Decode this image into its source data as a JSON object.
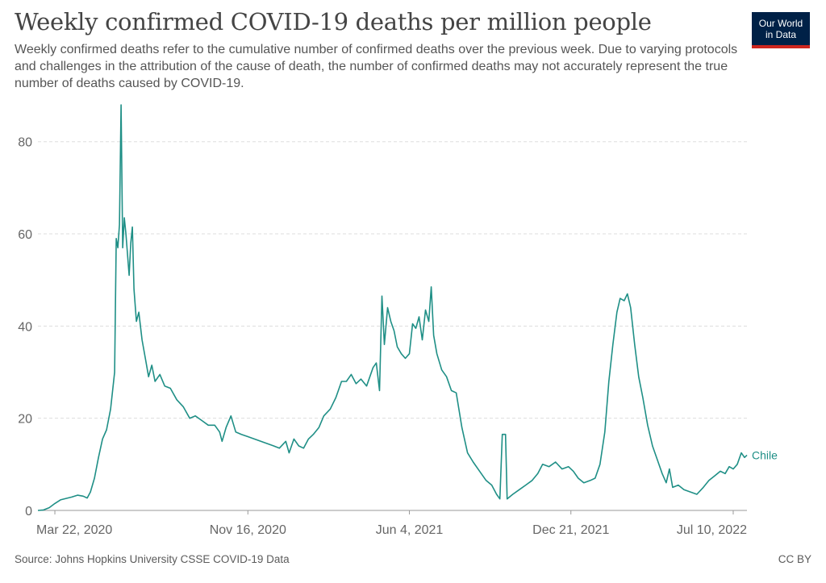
{
  "header": {
    "title": "Weekly confirmed COVID-19 deaths per million people",
    "subtitle": "Weekly confirmed deaths refer to the cumulative number of confirmed deaths over the previous week. Due to varying protocols and challenges in the attribution of the cause of death, the number of confirmed deaths may not accurately represent the true number of deaths caused by COVID-19."
  },
  "logo": {
    "line1": "Our World",
    "line2": "in Data"
  },
  "footer": {
    "source": "Source: Johns Hopkins University CSSE COVID-19 Data",
    "license": "CC BY"
  },
  "colors": {
    "series": "#1f8f86",
    "grid": "#dddddd",
    "axis": "#999999"
  },
  "chart_data": {
    "type": "line",
    "title": "Weekly confirmed COVID-19 deaths per million people",
    "xlabel": "",
    "ylabel": "",
    "x_range": [
      "2020-03-01",
      "2022-07-27"
    ],
    "ylim": [
      0,
      88
    ],
    "y_ticks": [
      0,
      20,
      40,
      60,
      80
    ],
    "x_ticks": [
      {
        "date": "2020-03-22",
        "label": "Mar 22, 2020"
      },
      {
        "date": "2020-11-16",
        "label": "Nov 16, 2020"
      },
      {
        "date": "2021-06-04",
        "label": "Jun 4, 2021"
      },
      {
        "date": "2021-12-21",
        "label": "Dec 21, 2021"
      },
      {
        "date": "2022-07-10",
        "label": "Jul 10, 2022"
      }
    ],
    "grid": true,
    "series": [
      {
        "name": "Chile",
        "points": [
          [
            "2020-03-01",
            0.0
          ],
          [
            "2020-03-08",
            0.1
          ],
          [
            "2020-03-15",
            0.6
          ],
          [
            "2020-03-22",
            1.5
          ],
          [
            "2020-03-29",
            2.3
          ],
          [
            "2020-04-05",
            2.6
          ],
          [
            "2020-04-12",
            2.9
          ],
          [
            "2020-04-19",
            3.3
          ],
          [
            "2020-04-26",
            3.1
          ],
          [
            "2020-05-01",
            2.7
          ],
          [
            "2020-05-05",
            4.0
          ],
          [
            "2020-05-10",
            7.0
          ],
          [
            "2020-05-15",
            11.5
          ],
          [
            "2020-05-20",
            15.5
          ],
          [
            "2020-05-25",
            17.5
          ],
          [
            "2020-05-30",
            22.0
          ],
          [
            "2020-06-04",
            30.0
          ],
          [
            "2020-06-06",
            59.0
          ],
          [
            "2020-06-08",
            57.0
          ],
          [
            "2020-06-10",
            62.0
          ],
          [
            "2020-06-12",
            88.0
          ],
          [
            "2020-06-14",
            57.0
          ],
          [
            "2020-06-16",
            63.5
          ],
          [
            "2020-06-18",
            60.0
          ],
          [
            "2020-06-22",
            51.0
          ],
          [
            "2020-06-24",
            58.0
          ],
          [
            "2020-06-26",
            61.5
          ],
          [
            "2020-06-28",
            48.0
          ],
          [
            "2020-07-01",
            41.0
          ],
          [
            "2020-07-04",
            43.0
          ],
          [
            "2020-07-08",
            37.0
          ],
          [
            "2020-07-12",
            33.0
          ],
          [
            "2020-07-16",
            29.0
          ],
          [
            "2020-07-20",
            31.5
          ],
          [
            "2020-07-24",
            28.0
          ],
          [
            "2020-07-30",
            29.5
          ],
          [
            "2020-08-05",
            27.0
          ],
          [
            "2020-08-12",
            26.5
          ],
          [
            "2020-08-20",
            24.0
          ],
          [
            "2020-08-28",
            22.5
          ],
          [
            "2020-09-05",
            20.0
          ],
          [
            "2020-09-12",
            20.5
          ],
          [
            "2020-09-20",
            19.5
          ],
          [
            "2020-09-28",
            18.5
          ],
          [
            "2020-10-06",
            18.5
          ],
          [
            "2020-10-12",
            17.0
          ],
          [
            "2020-10-15",
            15.0
          ],
          [
            "2020-10-20",
            18.0
          ],
          [
            "2020-10-26",
            20.5
          ],
          [
            "2020-11-01",
            17.0
          ],
          [
            "2020-11-08",
            16.5
          ],
          [
            "2020-11-16",
            16.0
          ],
          [
            "2020-11-24",
            15.5
          ],
          [
            "2020-12-02",
            15.0
          ],
          [
            "2020-12-10",
            14.5
          ],
          [
            "2020-12-18",
            14.0
          ],
          [
            "2020-12-25",
            13.5
          ],
          [
            "2021-01-02",
            15.0
          ],
          [
            "2021-01-06",
            12.5
          ],
          [
            "2021-01-12",
            15.5
          ],
          [
            "2021-01-18",
            14.0
          ],
          [
            "2021-01-24",
            13.5
          ],
          [
            "2021-01-30",
            15.5
          ],
          [
            "2021-02-05",
            16.5
          ],
          [
            "2021-02-12",
            18.0
          ],
          [
            "2021-02-18",
            20.5
          ],
          [
            "2021-02-26",
            22.0
          ],
          [
            "2021-03-05",
            24.5
          ],
          [
            "2021-03-12",
            28.0
          ],
          [
            "2021-03-18",
            28.0
          ],
          [
            "2021-03-24",
            29.5
          ],
          [
            "2021-03-30",
            27.5
          ],
          [
            "2021-04-05",
            28.5
          ],
          [
            "2021-04-12",
            27.0
          ],
          [
            "2021-04-20",
            31.0
          ],
          [
            "2021-04-24",
            32.0
          ],
          [
            "2021-04-28",
            26.0
          ],
          [
            "2021-05-01",
            46.5
          ],
          [
            "2021-05-04",
            36.0
          ],
          [
            "2021-05-08",
            44.0
          ],
          [
            "2021-05-12",
            41.0
          ],
          [
            "2021-05-16",
            39.0
          ],
          [
            "2021-05-20",
            35.5
          ],
          [
            "2021-05-25",
            34.0
          ],
          [
            "2021-05-30",
            33.0
          ],
          [
            "2021-06-04",
            34.0
          ],
          [
            "2021-06-08",
            40.5
          ],
          [
            "2021-06-12",
            39.5
          ],
          [
            "2021-06-16",
            42.0
          ],
          [
            "2021-06-20",
            37.0
          ],
          [
            "2021-06-24",
            43.5
          ],
          [
            "2021-06-28",
            41.0
          ],
          [
            "2021-07-01",
            48.5
          ],
          [
            "2021-07-04",
            38.0
          ],
          [
            "2021-07-08",
            34.0
          ],
          [
            "2021-07-14",
            30.5
          ],
          [
            "2021-07-20",
            29.0
          ],
          [
            "2021-07-26",
            26.0
          ],
          [
            "2021-08-01",
            25.5
          ],
          [
            "2021-08-08",
            18.0
          ],
          [
            "2021-08-15",
            12.5
          ],
          [
            "2021-08-22",
            10.5
          ],
          [
            "2021-08-30",
            8.5
          ],
          [
            "2021-09-07",
            6.5
          ],
          [
            "2021-09-14",
            5.5
          ],
          [
            "2021-09-20",
            3.5
          ],
          [
            "2021-09-24",
            2.5
          ],
          [
            "2021-09-27",
            16.5
          ],
          [
            "2021-10-01",
            16.5
          ],
          [
            "2021-10-03",
            2.5
          ],
          [
            "2021-10-10",
            3.5
          ],
          [
            "2021-10-18",
            4.5
          ],
          [
            "2021-10-26",
            5.5
          ],
          [
            "2021-11-03",
            6.5
          ],
          [
            "2021-11-10",
            8.0
          ],
          [
            "2021-11-16",
            10.0
          ],
          [
            "2021-11-24",
            9.5
          ],
          [
            "2021-12-02",
            10.5
          ],
          [
            "2021-12-10",
            9.0
          ],
          [
            "2021-12-18",
            9.5
          ],
          [
            "2021-12-24",
            8.5
          ],
          [
            "2021-12-30",
            7.0
          ],
          [
            "2022-01-06",
            6.0
          ],
          [
            "2022-01-14",
            6.5
          ],
          [
            "2022-01-20",
            7.0
          ],
          [
            "2022-01-26",
            10.0
          ],
          [
            "2022-02-01",
            17.0
          ],
          [
            "2022-02-06",
            28.0
          ],
          [
            "2022-02-11",
            36.0
          ],
          [
            "2022-02-16",
            43.0
          ],
          [
            "2022-02-20",
            46.0
          ],
          [
            "2022-02-25",
            45.5
          ],
          [
            "2022-03-01",
            47.0
          ],
          [
            "2022-03-05",
            44.0
          ],
          [
            "2022-03-10",
            36.0
          ],
          [
            "2022-03-15",
            29.0
          ],
          [
            "2022-03-20",
            24.5
          ],
          [
            "2022-03-26",
            18.5
          ],
          [
            "2022-04-01",
            14.0
          ],
          [
            "2022-04-07",
            11.0
          ],
          [
            "2022-04-13",
            8.0
          ],
          [
            "2022-04-18",
            6.0
          ],
          [
            "2022-04-22",
            9.0
          ],
          [
            "2022-04-26",
            5.0
          ],
          [
            "2022-05-03",
            5.5
          ],
          [
            "2022-05-10",
            4.5
          ],
          [
            "2022-05-18",
            4.0
          ],
          [
            "2022-05-26",
            3.5
          ],
          [
            "2022-06-03",
            5.0
          ],
          [
            "2022-06-10",
            6.5
          ],
          [
            "2022-06-17",
            7.5
          ],
          [
            "2022-06-24",
            8.5
          ],
          [
            "2022-06-30",
            8.0
          ],
          [
            "2022-07-05",
            9.5
          ],
          [
            "2022-07-10",
            9.0
          ],
          [
            "2022-07-15",
            10.0
          ],
          [
            "2022-07-20",
            12.5
          ],
          [
            "2022-07-24",
            11.5
          ],
          [
            "2022-07-27",
            12.0
          ]
        ]
      }
    ]
  }
}
